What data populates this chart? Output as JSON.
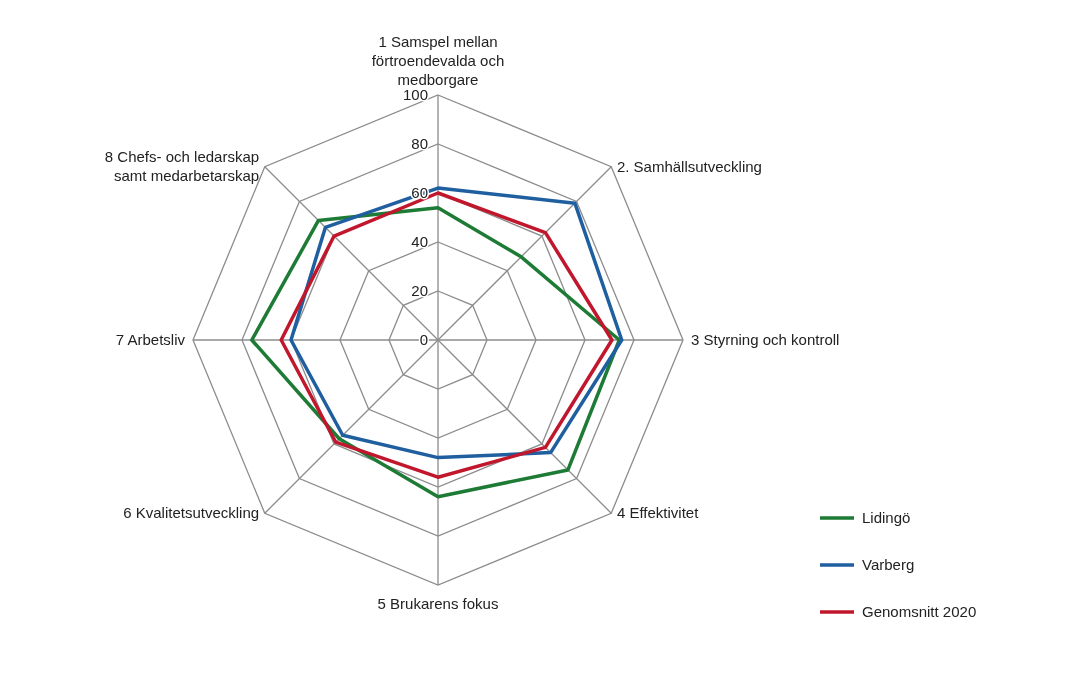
{
  "chart_data": {
    "type": "radar",
    "categories": [
      "1 Samspel mellan förtroendevalda och medborgare",
      "2. Samhällsutveckling",
      "3 Styrning och kontroll",
      "4 Effektivitet",
      "5 Brukarens fokus",
      "6 Kvalitetsutveckling",
      "7 Arbetsliv",
      "8 Chefs- och ledarskap samt medarbetarskap"
    ],
    "series": [
      {
        "name": "Lidingö",
        "color": "#1e7b35",
        "values": [
          54,
          48,
          74,
          75,
          64,
          57,
          76,
          69
        ]
      },
      {
        "name": "Varberg",
        "color": "#1f5fa0",
        "values": [
          62,
          79,
          75,
          65,
          48,
          55,
          60,
          65
        ]
      },
      {
        "name": "Genomsnitt 2020",
        "color": "#c0172d",
        "values": [
          60,
          62,
          71,
          62,
          56,
          59,
          64,
          60
        ]
      }
    ],
    "ylim": [
      0,
      100
    ],
    "yticks": [
      0,
      20,
      40,
      60,
      80,
      100
    ],
    "grid": true,
    "legend": "right",
    "marker": "none",
    "line_style": "solid"
  }
}
